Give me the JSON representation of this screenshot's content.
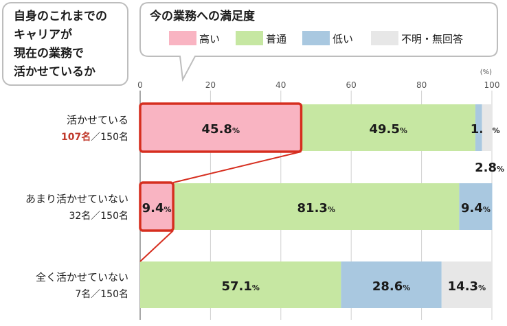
{
  "callout_left": {
    "lines": [
      "自身のこれまでの",
      "キャリアが",
      "現在の業務で",
      "活かせているか"
    ]
  },
  "callout_right": {
    "title": "今の業務への満足度"
  },
  "legend": [
    {
      "label": "高い",
      "color": "#f9b4c2"
    },
    {
      "label": "普通",
      "color": "#c6e7a2"
    },
    {
      "label": "低い",
      "color": "#a9c8e0"
    },
    {
      "label": "不明・無回答",
      "color": "#e7e7e7"
    }
  ],
  "colors": {
    "highlight": "#d62e1f",
    "count_highlight": "#c0392b"
  },
  "chart_data": {
    "type": "bar",
    "orientation": "horizontal",
    "stacked": true,
    "x_unit": "(%)",
    "xlim": [
      0,
      100
    ],
    "x_ticks": [
      "0",
      "20",
      "40",
      "60",
      "80",
      "100"
    ],
    "categories": [
      {
        "label": "活かせている",
        "count": "107名",
        "total": "／150名",
        "count_highlight": true
      },
      {
        "label": "あまり活かせていない",
        "count": "32名",
        "total": "／150名",
        "count_highlight": false
      },
      {
        "label": "全く活かせていない",
        "count": "7名",
        "total": "／150名",
        "count_highlight": false
      }
    ],
    "series": [
      {
        "name": "高い",
        "values": [
          45.8,
          9.4,
          0
        ]
      },
      {
        "name": "普通",
        "values": [
          49.5,
          81.3,
          57.1
        ]
      },
      {
        "name": "低い",
        "values": [
          1.9,
          9.4,
          28.6
        ]
      },
      {
        "name": "不明・無回答",
        "values": [
          2.8,
          0,
          14.3
        ]
      }
    ],
    "labels": [
      [
        "45.8",
        "49.5",
        "1.9",
        "2.8"
      ],
      [
        "9.4",
        "81.3",
        "9.4",
        ""
      ],
      [
        "",
        "57.1",
        "28.6",
        "14.3"
      ]
    ],
    "label_unit": "%",
    "highlighted": [
      [
        0,
        0
      ],
      [
        1,
        0
      ]
    ]
  }
}
